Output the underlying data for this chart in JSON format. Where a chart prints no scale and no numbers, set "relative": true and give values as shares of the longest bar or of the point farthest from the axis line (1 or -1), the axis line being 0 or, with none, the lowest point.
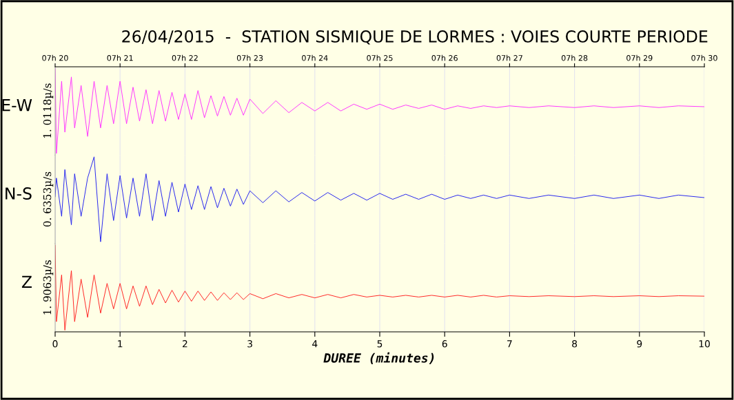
{
  "chart_data": [
    {
      "type": "line",
      "title": "26/04/2015  -  STATION SISMIQUE DE LORMES : VOIES COURTE PERIODE",
      "relative": true,
      "ylabel": "1. 0118µ/s",
      "grid": "x",
      "tick_labels": false,
      "xlim": [
        0,
        10
      ],
      "annotations": [
        "07h 20",
        "07h 21",
        "07h 22",
        "07h 23",
        "07h 24",
        "07h 25",
        "07h 26",
        "07h 27",
        "07h 28",
        "07h 29",
        "07h 30"
      ],
      "series": [
        {
          "name": "E-W",
          "color": "#ff33ff",
          "x": [
            0,
            0.02,
            0.1,
            0.15,
            0.25,
            0.3,
            0.4,
            0.5,
            0.6,
            0.7,
            0.8,
            0.9,
            1.0,
            1.1,
            1.2,
            1.3,
            1.4,
            1.5,
            1.6,
            1.7,
            1.8,
            1.9,
            2.0,
            2.1,
            2.2,
            2.3,
            2.4,
            2.5,
            2.6,
            2.7,
            2.8,
            2.9,
            3.0,
            3.2,
            3.4,
            3.6,
            3.8,
            4.0,
            4.2,
            4.4,
            4.6,
            4.8,
            5.0,
            5.2,
            5.4,
            5.6,
            5.8,
            6.0,
            6.2,
            6.4,
            6.6,
            6.8,
            7.0,
            7.3,
            7.6,
            8.0,
            8.3,
            8.6,
            9.0,
            9.3,
            9.6,
            10.0
          ],
          "values": [
            1.0,
            0.0,
            0.85,
            0.25,
            0.9,
            0.3,
            0.8,
            0.2,
            0.85,
            0.3,
            0.8,
            0.35,
            0.85,
            0.35,
            0.78,
            0.38,
            0.75,
            0.35,
            0.74,
            0.38,
            0.72,
            0.4,
            0.7,
            0.4,
            0.74,
            0.42,
            0.68,
            0.44,
            0.67,
            0.45,
            0.65,
            0.45,
            0.64,
            0.47,
            0.62,
            0.48,
            0.6,
            0.5,
            0.6,
            0.5,
            0.58,
            0.52,
            0.58,
            0.52,
            0.57,
            0.53,
            0.57,
            0.52,
            0.56,
            0.53,
            0.56,
            0.54,
            0.56,
            0.54,
            0.56,
            0.54,
            0.56,
            0.54,
            0.56,
            0.54,
            0.56,
            0.55
          ]
        }
      ]
    },
    {
      "type": "line",
      "relative": true,
      "ylabel": "0. 6353µ/s",
      "grid": "x",
      "tick_labels": false,
      "xlim": [
        0,
        10
      ],
      "series": [
        {
          "name": "N-S",
          "color": "#2222ee",
          "x": [
            0,
            0.02,
            0.1,
            0.15,
            0.25,
            0.3,
            0.4,
            0.5,
            0.6,
            0.7,
            0.8,
            0.9,
            1.0,
            1.1,
            1.2,
            1.3,
            1.4,
            1.5,
            1.6,
            1.7,
            1.8,
            1.9,
            2.0,
            2.1,
            2.2,
            2.3,
            2.4,
            2.5,
            2.6,
            2.7,
            2.8,
            2.9,
            3.0,
            3.2,
            3.4,
            3.6,
            3.8,
            4.0,
            4.2,
            4.4,
            4.6,
            4.8,
            5.0,
            5.2,
            5.4,
            5.6,
            5.8,
            6.0,
            6.2,
            6.4,
            6.6,
            6.8,
            7.0,
            7.3,
            7.6,
            8.0,
            8.3,
            8.6,
            9.0,
            9.3,
            9.6,
            10.0
          ],
          "values": [
            0.53,
            0.75,
            0.3,
            0.85,
            0.2,
            0.8,
            0.3,
            0.75,
            1.0,
            0.0,
            0.8,
            0.25,
            0.78,
            0.28,
            0.75,
            0.3,
            0.8,
            0.25,
            0.72,
            0.3,
            0.7,
            0.35,
            0.68,
            0.38,
            0.66,
            0.38,
            0.65,
            0.4,
            0.63,
            0.42,
            0.62,
            0.44,
            0.6,
            0.46,
            0.6,
            0.47,
            0.58,
            0.48,
            0.58,
            0.49,
            0.57,
            0.49,
            0.57,
            0.5,
            0.56,
            0.5,
            0.56,
            0.5,
            0.55,
            0.51,
            0.55,
            0.51,
            0.55,
            0.51,
            0.55,
            0.51,
            0.55,
            0.51,
            0.55,
            0.51,
            0.55,
            0.52
          ]
        }
      ]
    },
    {
      "type": "line",
      "relative": true,
      "ylabel": "1. 9063µ/s",
      "xlabel": "DUREE (minutes)",
      "grid": "x",
      "tick_labels": "x",
      "xlim": [
        0,
        10
      ],
      "xticks": [
        0,
        1,
        2,
        3,
        4,
        5,
        6,
        7,
        8,
        9,
        10
      ],
      "series": [
        {
          "name": "Z",
          "color": "#ff2222",
          "x": [
            0,
            0.02,
            0.1,
            0.15,
            0.25,
            0.3,
            0.4,
            0.5,
            0.6,
            0.7,
            0.8,
            0.9,
            1.0,
            1.1,
            1.2,
            1.3,
            1.4,
            1.5,
            1.6,
            1.7,
            1.8,
            1.9,
            2.0,
            2.1,
            2.2,
            2.3,
            2.4,
            2.5,
            2.6,
            2.7,
            2.8,
            2.9,
            3.0,
            3.2,
            3.4,
            3.6,
            3.8,
            4.0,
            4.2,
            4.4,
            4.6,
            4.8,
            5.0,
            5.2,
            5.4,
            5.6,
            5.8,
            6.0,
            6.2,
            6.4,
            6.6,
            6.8,
            7.0,
            7.3,
            7.6,
            8.0,
            8.3,
            8.6,
            9.0,
            9.3,
            9.6,
            10.0
          ],
          "values": [
            1.0,
            0.1,
            0.65,
            0.0,
            0.7,
            0.1,
            0.6,
            0.15,
            0.65,
            0.2,
            0.55,
            0.25,
            0.55,
            0.25,
            0.52,
            0.28,
            0.52,
            0.3,
            0.48,
            0.32,
            0.47,
            0.33,
            0.46,
            0.34,
            0.46,
            0.35,
            0.45,
            0.35,
            0.44,
            0.36,
            0.44,
            0.36,
            0.43,
            0.37,
            0.43,
            0.38,
            0.42,
            0.38,
            0.42,
            0.38,
            0.42,
            0.39,
            0.41,
            0.39,
            0.41,
            0.39,
            0.41,
            0.39,
            0.41,
            0.39,
            0.41,
            0.39,
            0.405,
            0.395,
            0.405,
            0.395,
            0.405,
            0.395,
            0.405,
            0.395,
            0.405,
            0.4
          ]
        }
      ]
    }
  ]
}
